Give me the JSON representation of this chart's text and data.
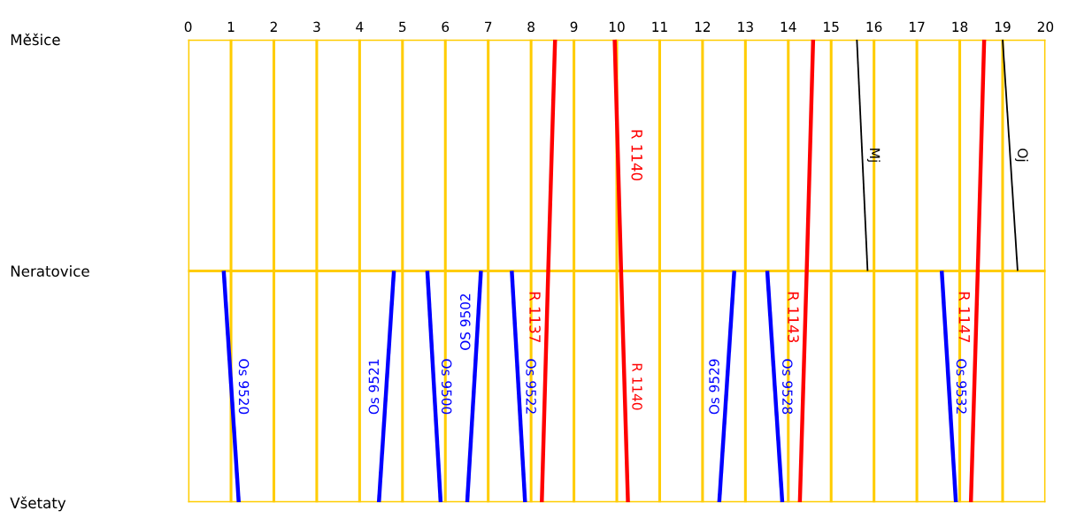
{
  "chart_data": {
    "type": "line",
    "orientation": "horizontal",
    "categories": [
      "Měšice",
      "Neratovice",
      "Všetaty"
    ],
    "xlim": [
      0,
      20
    ],
    "xticks": [
      0,
      1,
      2,
      3,
      4,
      5,
      6,
      7,
      8,
      9,
      10,
      11,
      12,
      13,
      14,
      15,
      16,
      17,
      18,
      19,
      20
    ],
    "grid": true,
    "series": [
      {
        "name": "Os 9520",
        "color": "#0000ff",
        "values": [
          null,
          0.83,
          1.18
        ]
      },
      {
        "name": "Os 9521",
        "color": "#0000ff",
        "values": [
          null,
          4.8,
          4.45
        ]
      },
      {
        "name": "Os 9500",
        "color": "#0000ff",
        "values": [
          null,
          5.58,
          5.89
        ]
      },
      {
        "name": "OS 9502",
        "color": "#0000ff",
        "values": [
          null,
          6.83,
          6.51
        ]
      },
      {
        "name": "Os 9522",
        "color": "#0000ff",
        "values": [
          null,
          7.55,
          7.86
        ]
      },
      {
        "name": "R 1137",
        "color": "#ff0000",
        "values": [
          8.56,
          8.4,
          8.25
        ]
      },
      {
        "name": "R 1140",
        "color": "#ff0000",
        "values": [
          9.95,
          10.1,
          10.26
        ]
      },
      {
        "name": "Os 9529",
        "color": "#0000ff",
        "values": [
          null,
          12.74,
          12.39
        ]
      },
      {
        "name": "Os 9528",
        "color": "#0000ff",
        "values": [
          null,
          13.51,
          13.86
        ]
      },
      {
        "name": "R 1143",
        "color": "#ff0000",
        "values": [
          14.58,
          14.43,
          14.27
        ]
      },
      {
        "name": "Os 9532",
        "color": "#0000ff",
        "values": [
          null,
          17.58,
          17.91
        ]
      },
      {
        "name": "R 1147",
        "color": "#ff0000",
        "values": [
          18.57,
          18.42,
          18.26
        ]
      },
      {
        "name": "Mj",
        "color": "#000000",
        "values": [
          15.6,
          15.85,
          null
        ]
      },
      {
        "name": "Oj",
        "color": "#000000",
        "values": [
          19.0,
          19.35,
          null
        ]
      }
    ],
    "annotations": [
      {
        "text": "R 1140",
        "x": 10.1
      }
    ]
  }
}
